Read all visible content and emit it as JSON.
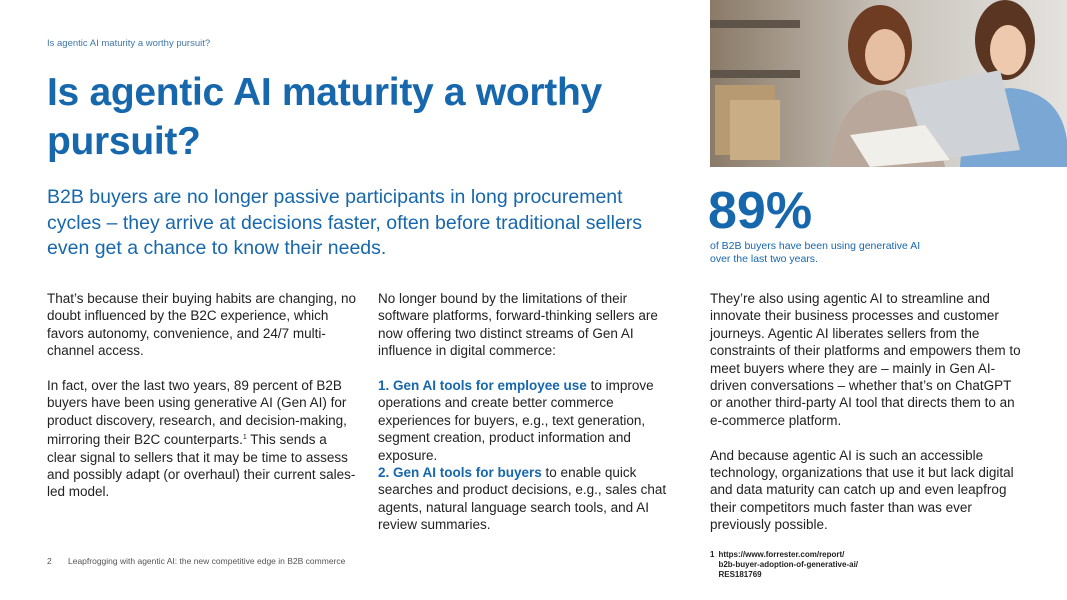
{
  "header": {
    "running_title": "Is agentic AI maturity a worthy pursuit?"
  },
  "title": "Is agentic AI maturity a worthy pursuit?",
  "subtitle": "B2B buyers are no longer passive participants in long procurement cycles – they arrive at decisions faster, often before traditional sellers even get a chance to know their needs.",
  "stat": {
    "value": "89%",
    "caption": "of B2B buyers have been using generative AI over the last two years."
  },
  "column1": {
    "paragraphs": [
      "That’s because their buying habits are changing, no doubt influenced by the B2C experience, which favors autonomy, convenience, and 24/7 multi-channel access.",
      "In fact, over the last two years, 89 percent of B2B buyers have been using generative AI (Gen AI) for product discovery, research, and decision-making, mirroring their B2C counterparts."
    ],
    "footnote_ref": "1",
    "continuation": "This sends a clear signal to sellers that it may be time to assess and possibly adapt (or overhaul) their current sales-led model."
  },
  "column2": {
    "intro": "No longer bound by the limitations of their software platforms, forward-thinking sellers are now offering two distinct streams of Gen AI influence in digital commerce:",
    "items": [
      {
        "lead": "1. Gen AI tools for employee use",
        "text": "to improve operations and create better commerce experiences for buyers, e.g., text generation, segment creation, product information and exposure."
      },
      {
        "lead": "2. Gen AI tools for buyers",
        "text": "to enable quick searches and product decisions, e.g., sales chat agents, natural language search tools, and AI review summaries."
      }
    ]
  },
  "column3": {
    "paragraphs": [
      "They’re also using agentic AI to streamline and innovate their business processes and customer journeys. Agentic AI liberates sellers from the constraints of their platforms and empowers them to meet buyers where they are – mainly in Gen AI-driven conversations – whether that’s on ChatGPT or another third-party AI tool that directs them to an e-commerce platform.",
      "And because agentic AI is such an accessible technology, organizations that use it but lack digital and data maturity can catch up and even leapfrog their competitors much faster than was ever previously possible."
    ]
  },
  "footnote": {
    "number": "1",
    "lines": [
      "https://www.forrester.com/report/",
      "b2b-buyer-adoption-of-generative-ai/",
      "RES181769"
    ]
  },
  "footer": {
    "page": "2",
    "text": "Leapfrogging with agentic AI: the new competitive edge in B2B commerce"
  }
}
